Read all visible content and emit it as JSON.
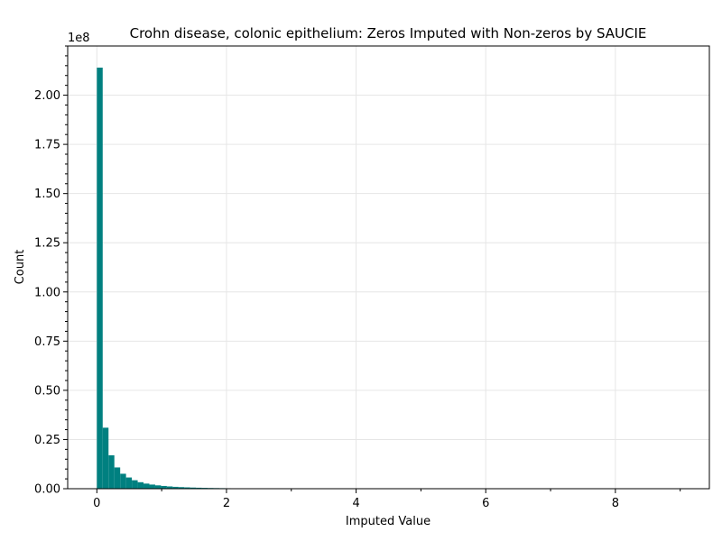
{
  "chart_data": {
    "type": "bar",
    "title": "Crohn disease, colonic epithelium: Zeros Imputed with Non-zeros by SAUCIE",
    "xlabel": "Imputed Value",
    "ylabel": "Count",
    "y_offset_label": "1e8",
    "xlim": [
      -0.45,
      9.45
    ],
    "ylim": [
      0,
      225000000.0
    ],
    "x_ticks": [
      0,
      2,
      4,
      6,
      8
    ],
    "x_tick_labels": [
      "0",
      "2",
      "4",
      "6",
      "8"
    ],
    "y_ticks": [
      0,
      25000000.0,
      50000000.0,
      75000000.0,
      100000000.0,
      125000000.0,
      150000000.0,
      175000000.0,
      200000000.0
    ],
    "y_tick_labels": [
      "0.00",
      "0.25",
      "0.50",
      "0.75",
      "1.00",
      "1.25",
      "1.50",
      "1.75",
      "2.00"
    ],
    "grid": true,
    "bar_color": "#008080",
    "bin_start": 0,
    "bin_width": 0.09,
    "values": [
      214000000,
      31000000,
      17000000,
      10800000,
      7600000,
      5700000,
      4300000,
      3300000,
      2600000,
      2100000,
      1700000,
      1400000,
      1150000,
      950000,
      800000,
      680000,
      580000,
      500000,
      430000,
      370000,
      320000,
      280000,
      240000,
      210000,
      180000,
      160000,
      140000,
      120000,
      105000,
      90000,
      78000,
      68000,
      59000,
      51000,
      44000,
      38000,
      33000,
      29000,
      25000,
      22000,
      19000,
      16000,
      14000,
      12000,
      10000,
      9000,
      8000,
      7000,
      6000,
      5200,
      4500,
      3900,
      3400,
      3000,
      2600,
      2200,
      1900,
      1700,
      1500,
      1300,
      1100,
      950,
      820,
      700,
      600,
      520,
      450,
      390,
      330,
      280,
      240,
      200,
      170,
      140,
      120,
      100,
      85,
      70,
      60,
      50,
      40,
      34,
      28,
      22,
      18,
      14,
      11,
      8,
      6,
      5,
      4,
      3,
      2,
      2,
      1,
      1,
      1,
      1,
      1,
      1
    ]
  }
}
